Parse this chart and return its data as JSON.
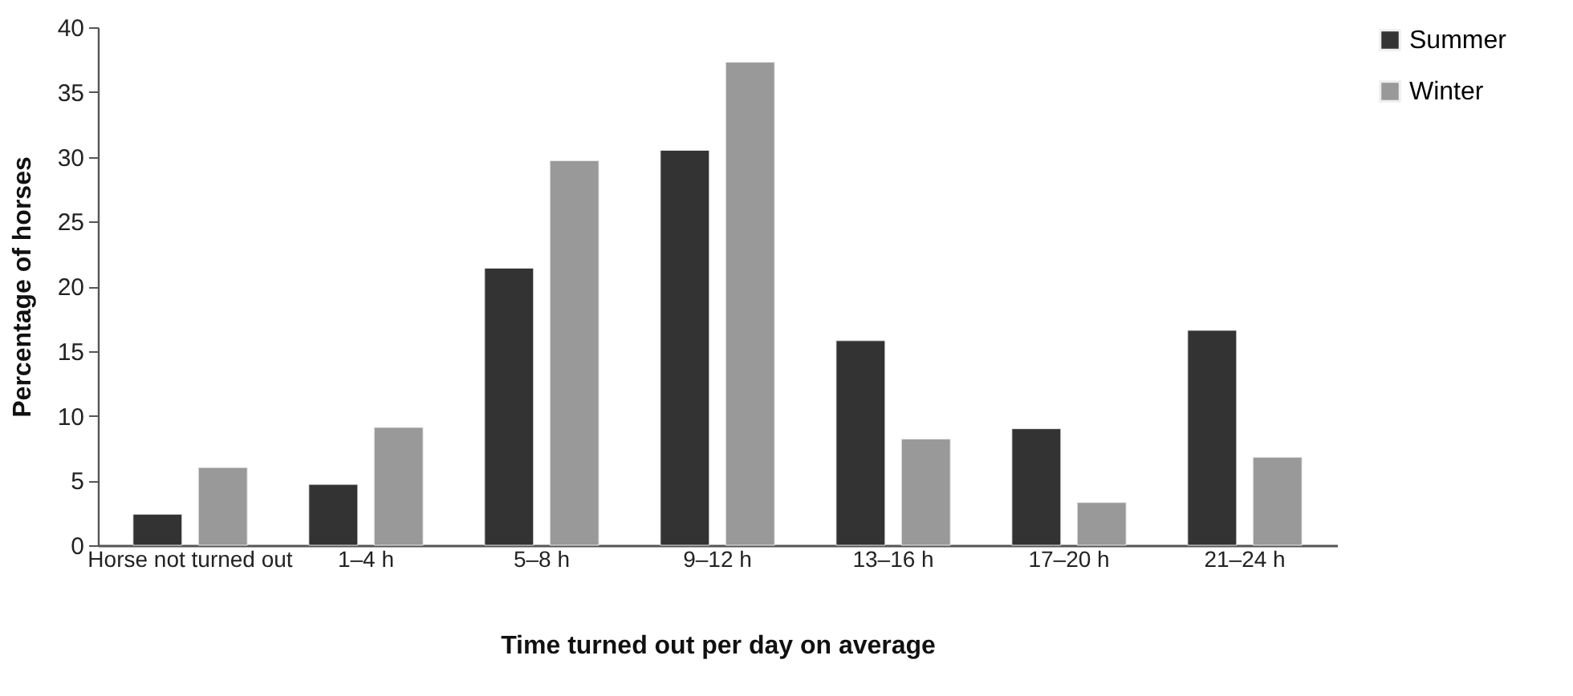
{
  "chart_data": {
    "type": "bar",
    "xlabel": "Time turned out per day on average",
    "ylabel": "Percentage of horses",
    "categories": [
      "Horse not turned out",
      "1–4 h",
      "5–8 h",
      "9–12 h",
      "13–16 h",
      "17–20 h",
      "21–24 h"
    ],
    "series": [
      {
        "name": "Summer",
        "color": "#333333",
        "values": [
          2.4,
          4.7,
          21.4,
          30.5,
          15.8,
          9.0,
          16.6
        ]
      },
      {
        "name": "Winter",
        "color": "#999999",
        "values": [
          6.0,
          9.1,
          29.7,
          37.3,
          8.2,
          3.3,
          6.8
        ]
      }
    ],
    "ylim": [
      0,
      40
    ],
    "yticks": [
      0,
      5,
      10,
      15,
      20,
      25,
      30,
      35,
      40
    ],
    "grid": false,
    "legend": "right"
  }
}
